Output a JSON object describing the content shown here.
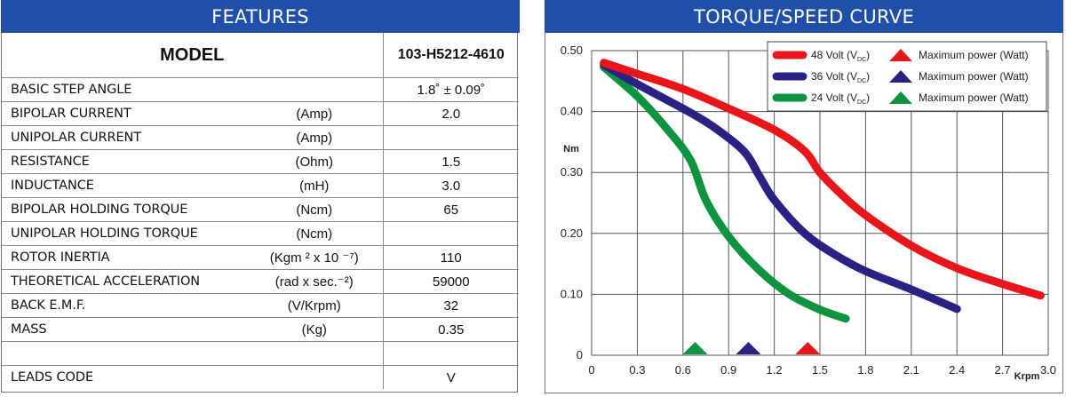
{
  "features": {
    "title": "FEATURES",
    "model_label": "MODEL",
    "model_value": "103-H5212-4610",
    "rows": [
      {
        "name": "BASIC STEP ANGLE",
        "unit": "",
        "value": "1.8˚ ± 0.09˚"
      },
      {
        "name": "BIPOLAR CURRENT",
        "unit": "(Amp)",
        "value": "2.0"
      },
      {
        "name": "UNIPOLAR CURRENT",
        "unit": "(Amp)",
        "value": ""
      },
      {
        "name": "RESISTANCE",
        "unit": "(Ohm)",
        "value": "1.5"
      },
      {
        "name": "INDUCTANCE",
        "unit": "(mH)",
        "value": "3.0"
      },
      {
        "name": "BIPOLAR HOLDING TORQUE",
        "unit": "(Ncm)",
        "value": "65"
      },
      {
        "name": "UNIPOLAR HOLDING TORQUE",
        "unit": "(Ncm)",
        "value": ""
      },
      {
        "name": "ROTOR INERTIA",
        "unit": "(Kgm ² x 10 ⁻⁷)",
        "value": "110"
      },
      {
        "name": "THEORETICAL ACCELERATION",
        "unit": "(rad x sec.⁻²)",
        "value": "59000"
      },
      {
        "name": "BACK E.M.F.",
        "unit": "(V/Krpm)",
        "value": "32"
      },
      {
        "name": "MASS",
        "unit": "(Kg)",
        "value": "0.35"
      },
      {
        "name": "",
        "unit": "",
        "value": ""
      },
      {
        "name": "LEADS CODE",
        "unit": "",
        "value": "V"
      }
    ]
  },
  "chart_data": {
    "type": "line",
    "title": "TORQUE/SPEED CURVE",
    "xlabel": "Krpm",
    "ylabel": "Nm",
    "xlim": [
      0,
      3.0
    ],
    "ylim": [
      0,
      0.5
    ],
    "x_ticks": [
      "0",
      "0.3",
      "0.6",
      "0.9",
      "1.2",
      "1.5",
      "1.8",
      "2.1",
      "2.4",
      "2.7",
      "3.0"
    ],
    "y_ticks": [
      "0",
      "0.10",
      "0.20",
      "0.30",
      "0.40",
      "0.50"
    ],
    "grid": true,
    "legend_position": "top-right",
    "max_power_label": "Maximum power (Watt)",
    "series": [
      {
        "name": "48 Volt",
        "subscript": "DC",
        "color": "#e8161b",
        "max_power_krpm": 1.42,
        "points": [
          [
            0.08,
            0.48
          ],
          [
            0.3,
            0.462
          ],
          [
            0.6,
            0.437
          ],
          [
            0.9,
            0.405
          ],
          [
            1.2,
            0.37
          ],
          [
            1.4,
            0.335
          ],
          [
            1.5,
            0.3
          ],
          [
            1.65,
            0.262
          ],
          [
            1.8,
            0.23
          ],
          [
            2.1,
            0.18
          ],
          [
            2.4,
            0.143
          ],
          [
            2.7,
            0.117
          ],
          [
            2.95,
            0.098
          ]
        ]
      },
      {
        "name": "36 Volt",
        "subscript": "DC",
        "color": "#2a2185",
        "max_power_krpm": 1.03,
        "points": [
          [
            0.08,
            0.477
          ],
          [
            0.3,
            0.445
          ],
          [
            0.6,
            0.405
          ],
          [
            0.8,
            0.375
          ],
          [
            1.0,
            0.335
          ],
          [
            1.1,
            0.295
          ],
          [
            1.2,
            0.255
          ],
          [
            1.4,
            0.2
          ],
          [
            1.6,
            0.165
          ],
          [
            1.8,
            0.138
          ],
          [
            2.1,
            0.108
          ],
          [
            2.4,
            0.076
          ]
        ]
      },
      {
        "name": "24 Volt",
        "subscript": "DC",
        "color": "#0e9440",
        "max_power_krpm": 0.68,
        "points": [
          [
            0.08,
            0.473
          ],
          [
            0.3,
            0.425
          ],
          [
            0.5,
            0.37
          ],
          [
            0.65,
            0.32
          ],
          [
            0.75,
            0.255
          ],
          [
            0.9,
            0.195
          ],
          [
            1.1,
            0.14
          ],
          [
            1.3,
            0.1
          ],
          [
            1.5,
            0.075
          ],
          [
            1.67,
            0.06
          ]
        ]
      }
    ]
  }
}
